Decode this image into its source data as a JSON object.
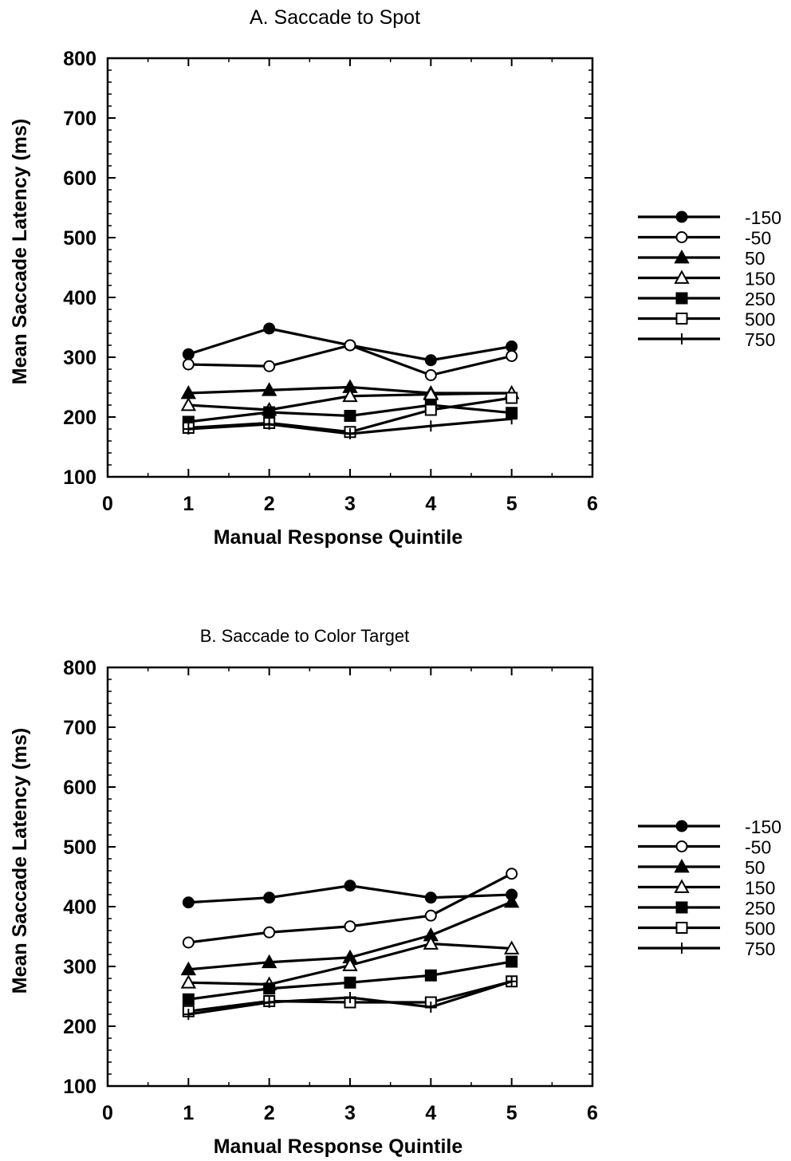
{
  "chart_data": [
    {
      "type": "line",
      "title": "A.   Saccade to Spot",
      "xlabel": "Manual Response Quintile",
      "ylabel": "Mean Saccade Latency (ms)",
      "xlim": [
        0,
        6
      ],
      "ylim": [
        100,
        800
      ],
      "xticks": [
        "0",
        "1",
        "2",
        "3",
        "4",
        "5",
        "6"
      ],
      "yticks": [
        "100",
        "200",
        "300",
        "400",
        "500",
        "600",
        "700",
        "800"
      ],
      "grid": false,
      "legend_position": "right",
      "x": [
        1,
        2,
        3,
        4,
        5
      ],
      "series": [
        {
          "name": "-150",
          "marker": "filled-circle",
          "values": [
            305,
            348,
            320,
            295,
            318
          ]
        },
        {
          "name": "-50",
          "marker": "open-circle",
          "values": [
            288,
            285,
            320,
            270,
            302
          ]
        },
        {
          "name": "50",
          "marker": "filled-triangle",
          "values": [
            240,
            245,
            250,
            240,
            240
          ]
        },
        {
          "name": "150",
          "marker": "open-triangle",
          "values": [
            220,
            212,
            235,
            238,
            240
          ]
        },
        {
          "name": "250",
          "marker": "filled-square",
          "values": [
            192,
            208,
            202,
            220,
            207
          ]
        },
        {
          "name": "500",
          "marker": "open-square",
          "values": [
            182,
            190,
            175,
            212,
            232
          ]
        },
        {
          "name": "750",
          "marker": "plus",
          "values": [
            180,
            188,
            172,
            185,
            197
          ]
        }
      ]
    },
    {
      "type": "line",
      "title": "B. Saccade to Color Target",
      "xlabel": "Manual Response Quintile",
      "ylabel": "Mean Saccade Latency (ms)",
      "xlim": [
        0,
        6
      ],
      "ylim": [
        100,
        800
      ],
      "xticks": [
        "0",
        "1",
        "2",
        "3",
        "4",
        "5",
        "6"
      ],
      "yticks": [
        "100",
        "200",
        "300",
        "400",
        "500",
        "600",
        "700",
        "800"
      ],
      "grid": false,
      "legend_position": "right",
      "x": [
        1,
        2,
        3,
        4,
        5
      ],
      "series": [
        {
          "name": "-150",
          "marker": "filled-circle",
          "values": [
            407,
            415,
            435,
            415,
            420
          ]
        },
        {
          "name": "-50",
          "marker": "open-circle",
          "values": [
            340,
            357,
            367,
            385,
            455
          ]
        },
        {
          "name": "50",
          "marker": "filled-triangle",
          "values": [
            295,
            307,
            315,
            352,
            408
          ]
        },
        {
          "name": "150",
          "marker": "open-triangle",
          "values": [
            273,
            270,
            302,
            338,
            330
          ]
        },
        {
          "name": "250",
          "marker": "filled-square",
          "values": [
            245,
            263,
            273,
            285,
            308
          ]
        },
        {
          "name": "500",
          "marker": "open-square",
          "values": [
            225,
            242,
            240,
            240,
            275
          ]
        },
        {
          "name": "750",
          "marker": "plus",
          "values": [
            220,
            240,
            248,
            232,
            275
          ]
        }
      ]
    }
  ]
}
